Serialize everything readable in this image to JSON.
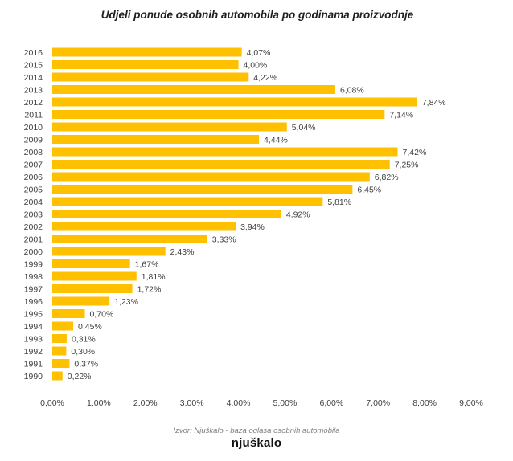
{
  "chart_data": {
    "type": "bar",
    "orientation": "horizontal",
    "title": "Udjeli ponude osobnih automobila po godinama proizvodnje",
    "xlabel": "",
    "ylabel": "",
    "xlim": [
      0,
      9
    ],
    "x_ticks": [
      "0,00%",
      "1,00%",
      "2,00%",
      "3,00%",
      "4,00%",
      "5,00%",
      "6,00%",
      "7,00%",
      "8,00%",
      "9,00%"
    ],
    "grid": false,
    "legend": "none",
    "bar_color": "#FFC000",
    "categories": [
      "2016",
      "2015",
      "2014",
      "2013",
      "2012",
      "2011",
      "2010",
      "2009",
      "2008",
      "2007",
      "2006",
      "2005",
      "2004",
      "2003",
      "2002",
      "2001",
      "2000",
      "1999",
      "1998",
      "1997",
      "1996",
      "1995",
      "1994",
      "1993",
      "1992",
      "1991",
      "1990"
    ],
    "values": [
      4.07,
      4.0,
      4.22,
      6.08,
      7.84,
      7.14,
      5.04,
      4.44,
      7.42,
      7.25,
      6.82,
      6.45,
      5.81,
      4.92,
      3.94,
      3.33,
      2.43,
      1.67,
      1.81,
      1.72,
      1.23,
      0.7,
      0.45,
      0.31,
      0.3,
      0.37,
      0.22
    ],
    "data_labels": [
      "4,07%",
      "4,00%",
      "4,22%",
      "6,08%",
      "7,84%",
      "7,14%",
      "5,04%",
      "4,44%",
      "7,42%",
      "7,25%",
      "6,82%",
      "6,45%",
      "5,81%",
      "4,92%",
      "3,94%",
      "3,33%",
      "2,43%",
      "1,67%",
      "1,81%",
      "1,72%",
      "1,23%",
      "0,70%",
      "0,45%",
      "0,31%",
      "0,30%",
      "0,37%",
      "0,22%"
    ]
  },
  "footer": {
    "source": "Izvor: Njuškalo -  baza oglasa osobnih automobila",
    "logo": "njuškalo"
  }
}
